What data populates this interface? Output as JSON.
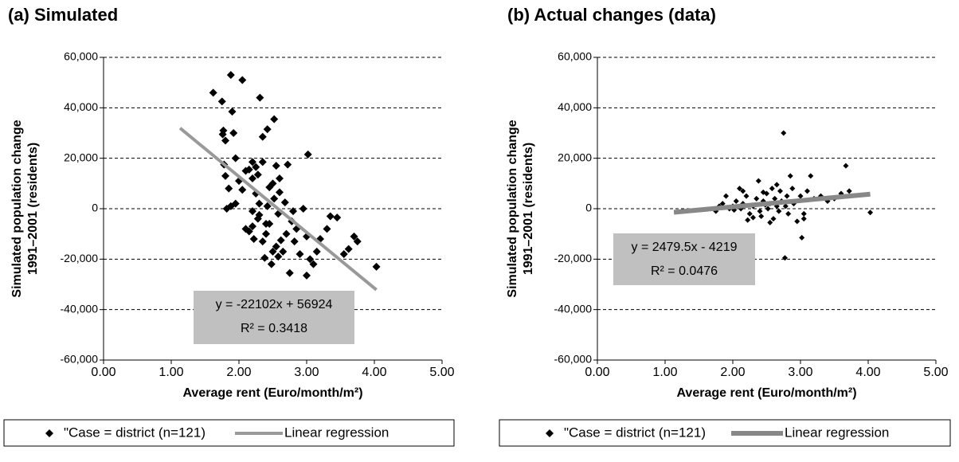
{
  "chart_data": [
    {
      "type": "scatter",
      "title": "(a) Simulated",
      "x_label": "Average rent (Euro/month/m²)",
      "y_label": [
        "Simulated population change",
        "1991–2001 (residents)"
      ],
      "xlim": [
        0,
        5
      ],
      "ylim": [
        -60000,
        60000
      ],
      "xticks": [
        {
          "value": 0,
          "label": "0.00"
        },
        {
          "value": 1,
          "label": "1.00"
        },
        {
          "value": 2,
          "label": "2.00"
        },
        {
          "value": 3,
          "label": "3.00"
        },
        {
          "value": 4,
          "label": "4.00"
        },
        {
          "value": 5,
          "label": "5.00"
        }
      ],
      "yticks": [
        {
          "value": -60000,
          "label": "-60,000"
        },
        {
          "value": -40000,
          "label": "-40,000"
        },
        {
          "value": -20000,
          "label": "-20,000"
        },
        0,
        {
          "value": 20000,
          "label": "20,000"
        },
        {
          "value": 40000,
          "label": "40,000"
        },
        {
          "value": 60000,
          "label": "60,000"
        }
      ],
      "grid": true,
      "x": [
        1.62,
        1.75,
        1.77,
        1.76,
        1.8,
        1.88,
        1.9,
        1.92,
        2.05,
        2.31,
        2.35,
        2.42,
        2.52,
        1.95,
        1.78,
        1.8,
        1.85,
        1.88,
        1.82,
        1.95,
        2.0,
        2.05,
        2.1,
        2.15,
        2.2,
        2.2,
        2.25,
        2.28,
        2.25,
        2.3,
        2.2,
        2.1,
        2.15,
        2.2,
        2.22,
        2.28,
        2.3,
        2.35,
        2.38,
        2.4,
        2.42,
        2.45,
        2.5,
        2.5,
        2.55,
        2.52,
        2.58,
        2.6,
        2.62,
        2.65,
        2.7,
        2.72,
        2.75,
        2.78,
        2.8,
        2.82,
        2.85,
        2.9,
        2.95,
        3.02,
        3.0,
        3.05,
        3.0,
        3.1,
        3.15,
        3.2,
        3.3,
        3.35,
        3.45,
        3.55,
        3.62,
        3.7,
        3.75,
        4.03,
        2.48,
        2.55,
        2.35,
        2.6,
        2.4,
        2.68,
        2.58,
        2.45
      ],
      "series": [
        {
          "name": "\"Case = district (n=121)",
          "color": "#000000",
          "values": [
            46000,
            42500,
            31000,
            29500,
            27000,
            53000,
            38500,
            30000,
            51000,
            44000,
            28500,
            31500,
            35500,
            20000,
            17500,
            13000,
            8000,
            1000,
            0,
            2000,
            11000,
            7500,
            15000,
            15500,
            18500,
            12000,
            16500,
            13500,
            6000,
            2000,
            -1000,
            -8000,
            -9000,
            -7000,
            -12000,
            -4000,
            -2500,
            -13000,
            -19500,
            -10000,
            1000,
            -6000,
            -17000,
            10000,
            17000,
            4000,
            -2000,
            6500,
            -12500,
            -17000,
            -10000,
            17500,
            -25500,
            -5000,
            -1000,
            -13000,
            -8000,
            -18000,
            0,
            21500,
            -11000,
            -20000,
            -26500,
            -22000,
            -17000,
            -12000,
            -8000,
            -3000,
            -3500,
            -18000,
            -16000,
            -11000,
            -13000,
            -23000,
            -22000,
            -15000,
            18500,
            12000,
            -6000,
            2500,
            -19000,
            8500
          ]
        }
      ],
      "regression": {
        "name": "Linear regression",
        "color": "#999999",
        "x": [
          1.13,
          4.03
        ],
        "values": [
          31950,
          -32150
        ]
      },
      "annotation": [
        "y = -22102x + 56924",
        "R² = 0.3418"
      ]
    },
    {
      "type": "scatter",
      "title": "(b) Actual changes (data)",
      "x_label": "Average rent (Euro/month/m²)",
      "y_label": [
        "Simulated population change",
        "1991–2001 (residents)"
      ],
      "xlim": [
        0,
        5
      ],
      "ylim": [
        -60000,
        60000
      ],
      "xticks": [
        {
          "value": 0,
          "label": "0.00"
        },
        {
          "value": 1,
          "label": "1.00"
        },
        {
          "value": 2,
          "label": "2.00"
        },
        {
          "value": 3,
          "label": "3.00"
        },
        {
          "value": 4,
          "label": "4.00"
        },
        {
          "value": 5,
          "label": "5.00"
        }
      ],
      "yticks": [
        {
          "value": -60000,
          "label": "-60,000"
        },
        {
          "value": -40000,
          "label": "-40,000"
        },
        {
          "value": -20000,
          "label": "-20,000"
        },
        0,
        {
          "value": 20000,
          "label": "20,000"
        },
        {
          "value": 40000,
          "label": "40,000"
        },
        {
          "value": 60000,
          "label": "60,000"
        }
      ],
      "grid": true,
      "x": [
        1.75,
        1.8,
        1.85,
        1.9,
        2.0,
        2.05,
        2.1,
        2.12,
        2.15,
        2.2,
        2.25,
        2.3,
        2.35,
        2.38,
        2.4,
        2.45,
        2.5,
        2.52,
        2.55,
        2.58,
        2.6,
        2.62,
        2.65,
        2.7,
        2.72,
        2.75,
        2.77,
        2.8,
        2.82,
        2.85,
        2.88,
        2.9,
        2.95,
        3.0,
        3.02,
        3.05,
        3.1,
        3.15,
        3.2,
        3.3,
        3.4,
        3.5,
        3.6,
        3.67,
        3.72,
        4.03,
        2.22,
        2.42,
        2.48,
        2.68,
        2.78,
        2.02,
        1.95,
        2.3,
        2.55,
        2.65,
        3.05,
        2.15,
        2.45
      ],
      "series": [
        {
          "name": "\"Case = district (n=121)",
          "color": "#000000",
          "values": [
            -1000,
            1000,
            2000,
            5000,
            1000,
            3000,
            8000,
            0,
            2000,
            5000,
            -2000,
            1000,
            4000,
            11000,
            -1000,
            3000,
            6000,
            0,
            2000,
            8000,
            -4000,
            4000,
            1000,
            7000,
            3000,
            30000,
            -19500,
            5000,
            -2000,
            13000,
            8000,
            2000,
            -5000,
            5000,
            -11500,
            -4000,
            7000,
            13000,
            4000,
            5000,
            3000,
            4000,
            6000,
            17000,
            7000,
            -1500,
            -4500,
            -3000,
            1500,
            -1000,
            1000,
            -500,
            0,
            -3500,
            -5500,
            9500,
            -2000,
            7000,
            6500
          ]
        }
      ],
      "regression": {
        "name": "Linear regression",
        "color": "#888888",
        "x": [
          1.13,
          4.03
        ],
        "values": [
          -1420,
          5770
        ]
      },
      "annotation": [
        "y = 2479.5x - 4219",
        "R² = 0.0476"
      ]
    }
  ]
}
